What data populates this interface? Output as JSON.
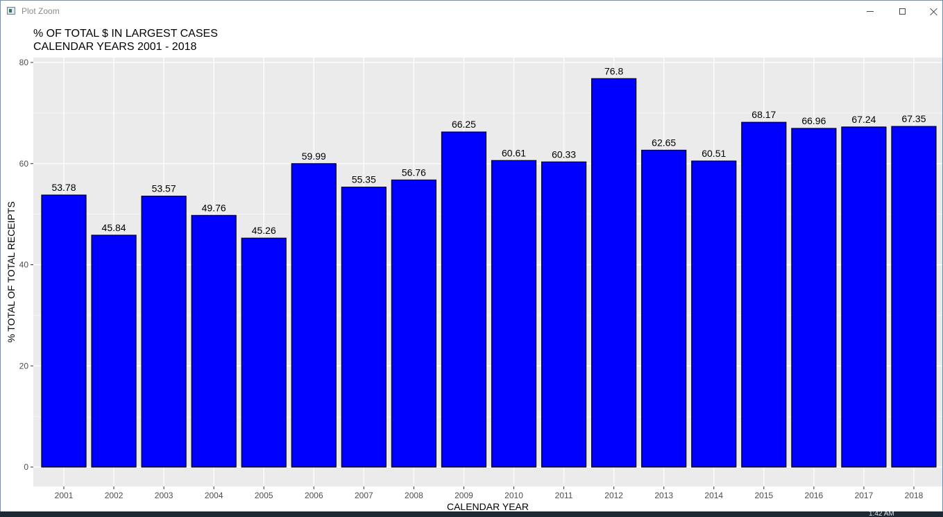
{
  "window": {
    "title": "Plot Zoom"
  },
  "taskbar": {
    "clock": "1:42 AM"
  },
  "chart_data": {
    "type": "bar",
    "title": "% OF TOTAL $ IN LARGEST CASES",
    "subtitle": "CALENDAR YEARS 2001 - 2018",
    "xlabel": "CALENDAR YEAR",
    "ylabel": "% TOTAL OF TOTAL RECEIPTS",
    "categories": [
      "2001",
      "2002",
      "2003",
      "2004",
      "2005",
      "2006",
      "2007",
      "2008",
      "2009",
      "2010",
      "2011",
      "2012",
      "2013",
      "2014",
      "2015",
      "2016",
      "2017",
      "2018"
    ],
    "values": [
      53.78,
      45.84,
      53.57,
      49.76,
      45.26,
      59.99,
      55.35,
      56.76,
      66.25,
      60.61,
      60.33,
      76.8,
      62.65,
      60.51,
      68.17,
      66.96,
      67.24,
      67.35
    ],
    "value_labels": [
      "53.78",
      "45.84",
      "53.57",
      "49.76",
      "45.26",
      "59.99",
      "55.35",
      "56.76",
      "66.25",
      "60.61",
      "60.33",
      "76.8",
      "62.65",
      "60.51",
      "68.17",
      "66.96",
      "67.24",
      "67.35"
    ],
    "ylim": [
      0,
      80
    ],
    "yticks": [
      0,
      20,
      40,
      60,
      80
    ],
    "grid": true,
    "colors": {
      "bar_fill": "#0000ff",
      "bar_stroke": "#000000",
      "panel_bg": "#ebebeb",
      "grid_major": "#ffffff"
    }
  }
}
